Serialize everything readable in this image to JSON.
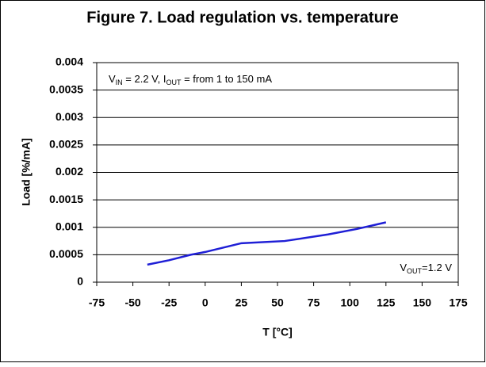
{
  "chart_data": {
    "type": "line",
    "title": "Figure 7. Load regulation vs. temperature",
    "x_label": "T [°C]",
    "y_label": "Load [%/mA]",
    "annotations": [
      {
        "parts": [
          "V",
          "IN",
          " = 2.2 V, I",
          "OUT",
          " = from 1 to 150 mA"
        ]
      },
      {
        "parts": [
          "V",
          "OUT",
          "=1.2 V"
        ]
      }
    ],
    "x": [
      -40,
      -25,
      -10,
      0,
      25,
      55,
      85,
      105,
      125
    ],
    "series": [
      {
        "color": "#1f1fd6",
        "values": [
          0.00032,
          0.0004,
          0.0005,
          0.00055,
          0.00071,
          0.00075,
          0.00087,
          0.00097,
          0.00109
        ]
      }
    ],
    "xlim": [
      -75,
      175
    ],
    "xticks": [
      -75,
      -50,
      -25,
      0,
      25,
      50,
      75,
      100,
      125,
      150,
      175
    ],
    "ylim": [
      0,
      0.004
    ],
    "yticks": [
      0,
      0.0005,
      0.001,
      0.0015,
      0.002,
      0.0025,
      0.003,
      0.0035,
      0.004
    ],
    "grid": true
  }
}
